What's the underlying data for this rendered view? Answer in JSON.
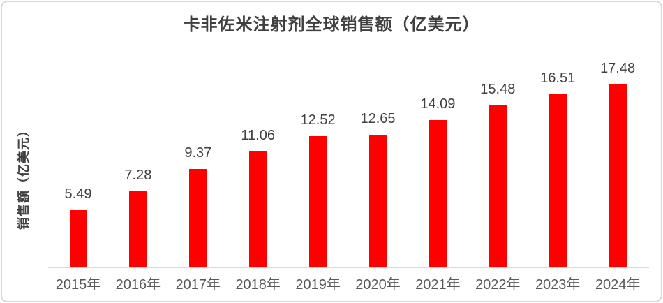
{
  "chart_data": {
    "type": "bar",
    "title": "卡非佐米注射剂全球销售额（亿美元）",
    "ylabel": "销售额（亿美元）",
    "xlabel": "",
    "categories": [
      "2015年",
      "2016年",
      "2017年",
      "2018年",
      "2019年",
      "2020年",
      "2021年",
      "2022年",
      "2023年",
      "2024年"
    ],
    "values": [
      5.49,
      7.28,
      9.37,
      11.06,
      12.52,
      12.65,
      14.09,
      15.48,
      16.51,
      17.48
    ],
    "data_labels_shown": true,
    "ylim": [
      0,
      18
    ],
    "grid": false,
    "legend_position": "none",
    "colors": {
      "bar": "#ff0000",
      "axis_line": "#d9d9d9",
      "title_text": "#3f3f3f",
      "value_label_text": "#404040",
      "tick_label_text": "#595959"
    }
  }
}
